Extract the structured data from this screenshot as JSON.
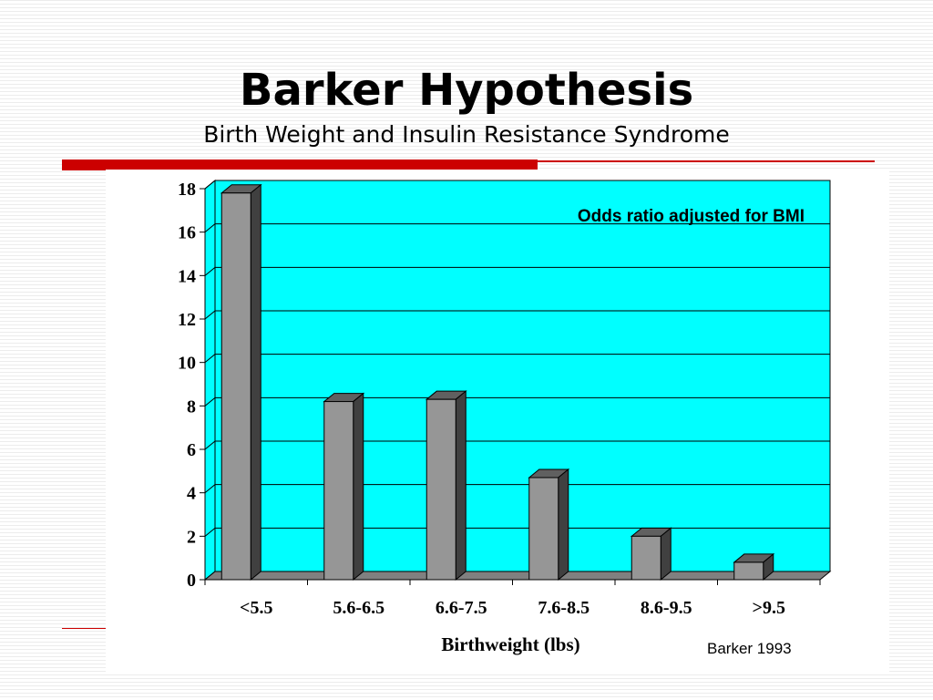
{
  "slide": {
    "title": "Barker Hypothesis",
    "subtitle": "Birth Weight and Insulin Resistance Syndrome",
    "source": "Barker 1993",
    "accent_color": "#cc0000"
  },
  "chart_data": {
    "type": "bar",
    "categories": [
      "<5.5",
      "5.6-6.5",
      "6.6-7.5",
      "7.6-8.5",
      "8.6-9.5",
      ">9.5"
    ],
    "values": [
      17.8,
      8.2,
      8.3,
      4.7,
      2.0,
      0.8
    ],
    "title": "",
    "annotation": "Odds ratio adjusted for BMI",
    "xlabel": "Birthweight (lbs)",
    "ylabel": "",
    "ylim": [
      0,
      18
    ],
    "yticks": [
      0,
      2,
      4,
      6,
      8,
      10,
      12,
      14,
      16,
      18
    ],
    "grid": true,
    "plot_background": "#00ffff",
    "bar_color": "#969696",
    "bar_side_color": "#404040",
    "bar_top_color": "#606060"
  }
}
